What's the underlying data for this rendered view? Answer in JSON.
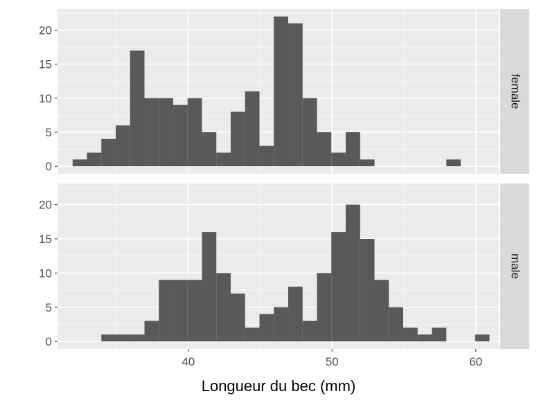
{
  "chart_data": {
    "type": "bar",
    "subtype": "faceted-histogram",
    "xlabel": "Longueur du bec (mm)",
    "ylabel": "",
    "xlim": [
      30.9,
      61.6
    ],
    "x_ticks": [
      40,
      50,
      60
    ],
    "y_ticks": [
      0,
      5,
      10,
      15,
      20
    ],
    "ylim": [
      -1.1,
      23.1
    ],
    "bin_start": 31.95,
    "bin_width": 1.0,
    "grid": true,
    "bar_color": "#595959",
    "panel_background": "#ebebeb",
    "strip_background": "#d9d9d9",
    "panels": [
      {
        "label": "female",
        "counts": [
          1,
          2,
          4,
          6,
          17,
          10,
          10,
          9,
          10,
          5,
          2,
          8,
          11,
          3,
          22,
          21,
          10,
          5,
          2,
          5,
          1,
          0,
          0,
          0,
          0,
          0,
          1
        ]
      },
      {
        "label": "male",
        "counts": [
          0,
          0,
          1,
          1,
          1,
          3,
          9,
          9,
          9,
          16,
          10,
          7,
          2,
          4,
          5,
          8,
          3,
          10,
          16,
          20,
          15,
          9,
          5,
          2,
          1,
          2,
          0,
          0,
          1
        ]
      }
    ]
  }
}
